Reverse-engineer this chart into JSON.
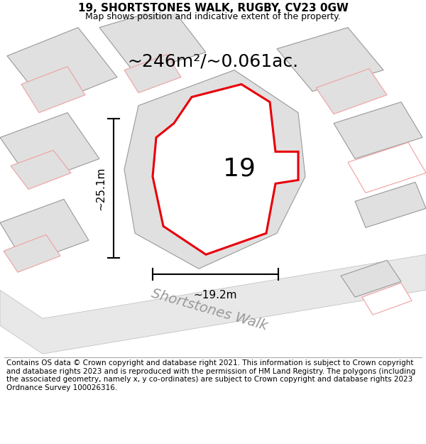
{
  "title_line1": "19, SHORTSTONES WALK, RUGBY, CV23 0GW",
  "title_line2": "Map shows position and indicative extent of the property.",
  "area_text": "~246m²/~0.061ac.",
  "label_number": "19",
  "dim_vertical": "~25.1m",
  "dim_horizontal": "~19.2m",
  "road_label": "Shortstones Walk",
  "footer_text": "Contains OS data © Crown copyright and database right 2021. This information is subject to Crown copyright and database rights 2023 and is reproduced with the permission of HM Land Registry. The polygons (including the associated geometry, namely x, y co-ordinates) are subject to Crown copyright and database rights 2023 Ordnance Survey 100026316.",
  "bg_color": "#ffffff",
  "plot_color": "#e8000a",
  "gray_fill": "#e0e0e0",
  "gray_edge": "#999999",
  "pink_edge": "#f0a0a0",
  "pink_fill": "#ffffff",
  "road_fill": "#e8e8e8",
  "road_edge": "#bbbbbb"
}
